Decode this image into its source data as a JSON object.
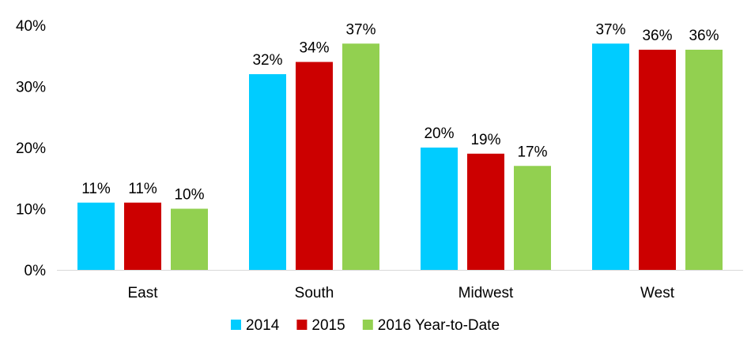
{
  "chart_data": {
    "type": "bar",
    "categories": [
      "East",
      "South",
      "Midwest",
      "West"
    ],
    "series": [
      {
        "name": "2014",
        "color": "#00CCFF",
        "values": [
          11,
          32,
          20,
          37
        ],
        "labels": [
          "11%",
          "32%",
          "20%",
          "37%"
        ]
      },
      {
        "name": "2015",
        "color": "#CC0000",
        "values": [
          11,
          34,
          19,
          36
        ],
        "labels": [
          "11%",
          "34%",
          "19%",
          "36%"
        ]
      },
      {
        "name": "2016 Year-to-Date",
        "color": "#92D050",
        "values": [
          10,
          37,
          17,
          36
        ],
        "labels": [
          "10%",
          "37%",
          "17%",
          "36%"
        ]
      }
    ],
    "ylim": [
      0,
      40
    ],
    "yticks": [
      0,
      10,
      20,
      30,
      40
    ],
    "ytick_labels": [
      "0%",
      "10%",
      "20%",
      "30%",
      "40%"
    ],
    "grid": false,
    "legend_position": "bottom"
  }
}
